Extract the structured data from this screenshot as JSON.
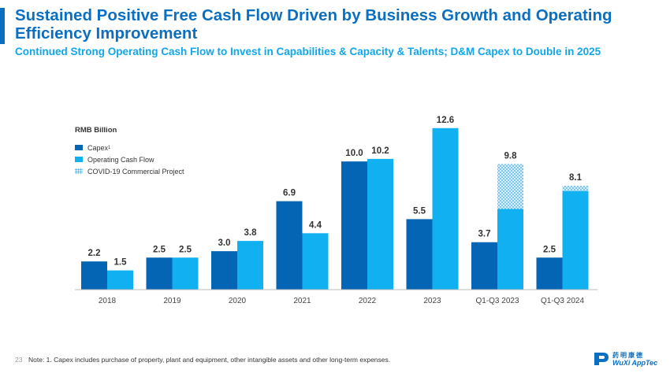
{
  "header": {
    "title": "Sustained Positive Free Cash Flow Driven by Business Growth and Operating Efficiency Improvement",
    "subtitle": "Continued Strong Operating Cash Flow to Invest in Capabilities & Capacity & Talents; D&M Capex to Double in 2025"
  },
  "chart_data": {
    "type": "bar",
    "unit_label": "RMB Billion",
    "categories": [
      "2018",
      "2019",
      "2020",
      "2021",
      "2022",
      "2023",
      "Q1-Q3 2023",
      "Q1-Q3 2024"
    ],
    "series": [
      {
        "name": "Capex",
        "values": [
          2.2,
          2.5,
          3.0,
          6.9,
          10.0,
          5.5,
          3.7,
          2.5
        ],
        "labels": [
          "2.2",
          "2.5",
          "3.0",
          "6.9",
          "10.0",
          "5.5",
          "3.7",
          "2.5"
        ]
      },
      {
        "name": "Operating Cash Flow",
        "values": [
          1.5,
          2.5,
          3.8,
          4.4,
          10.2,
          12.6,
          9.8,
          8.1
        ],
        "labels": [
          "1.5",
          "2.5",
          "3.8",
          "4.4",
          "10.2",
          "12.6",
          "9.8",
          "8.1"
        ]
      },
      {
        "name": "COVID-19 Commercial Project",
        "note": "portion of Operating Cash Flow",
        "values": [
          0,
          0,
          0,
          0,
          0,
          0,
          3.5,
          0.4
        ]
      }
    ],
    "legend": [
      {
        "label": "Capex",
        "sup": "1",
        "key": "capex"
      },
      {
        "label": "Operating Cash Flow",
        "sup": "",
        "key": "ocf"
      },
      {
        "label": "COVID-19 Commercial Project",
        "sup": "",
        "key": "covid"
      }
    ],
    "ylim": [
      0,
      14
    ],
    "colors": {
      "capex": "#0465b5",
      "ocf": "#11b0f0",
      "covid": "#3aa9e6"
    }
  },
  "footer": {
    "page_number": "23",
    "note": "Note: 1. Capex includes purchase of property, plant and equipment, other intangible assets and other long-term expenses."
  },
  "logo": {
    "cn": "药明康德",
    "en": "WuXi AppTec"
  }
}
